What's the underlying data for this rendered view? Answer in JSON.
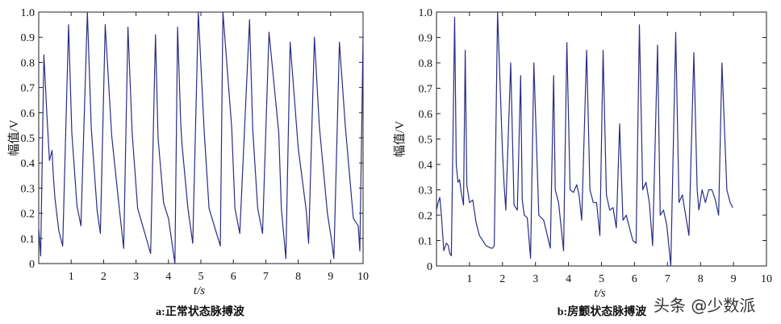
{
  "chart_data": [
    {
      "type": "line",
      "caption": "a:正常状态脉搏波",
      "xlabel": "t/s",
      "ylabel": "幅值/V",
      "xlim": [
        0,
        10
      ],
      "ylim": [
        0,
        1
      ],
      "xticks": [
        1,
        2,
        3,
        4,
        5,
        6,
        7,
        8,
        9,
        10
      ],
      "yticks": [
        0,
        0.1,
        0.2,
        0.3,
        0.4,
        0.5,
        0.6,
        0.7,
        0.8,
        0.9,
        1.0
      ],
      "ytick_labels": [
        "0",
        "0.1",
        "0.2",
        "0.3",
        "0.4",
        "0.5",
        "0.6",
        "0.7",
        "0.8",
        "0.9",
        "1.0"
      ],
      "grid": false,
      "color": "#2b2d83",
      "series": [
        {
          "x": [
            0.0,
            0.06,
            0.16,
            0.25,
            0.33,
            0.41,
            0.45,
            0.5,
            0.62,
            0.74,
            0.92,
            1.02,
            1.18,
            1.3,
            1.5,
            1.62,
            1.8,
            1.9,
            2.05,
            2.25,
            2.5,
            2.62,
            2.75,
            2.88,
            3.05,
            3.45,
            3.6,
            3.68,
            3.85,
            4.0,
            4.2,
            4.28,
            4.38,
            4.42,
            4.6,
            4.75,
            4.92,
            5.1,
            5.25,
            5.6,
            5.68,
            5.95,
            6.05,
            6.2,
            6.5,
            6.6,
            6.75,
            6.9,
            7.1,
            7.4,
            7.48,
            7.62,
            7.75,
            8.0,
            8.25,
            8.32,
            8.5,
            8.65,
            8.9,
            9.02,
            9.1,
            9.27,
            9.45,
            9.7,
            9.85,
            9.9,
            10.0
          ],
          "y": [
            0.14,
            0.03,
            0.83,
            0.6,
            0.41,
            0.45,
            0.35,
            0.26,
            0.13,
            0.07,
            0.95,
            0.52,
            0.23,
            0.15,
            1.0,
            0.54,
            0.21,
            0.12,
            0.95,
            0.51,
            0.2,
            0.06,
            0.94,
            0.52,
            0.22,
            0.04,
            0.91,
            0.5,
            0.24,
            0.18,
            0.0,
            0.94,
            0.55,
            0.47,
            0.22,
            0.08,
            1.0,
            0.53,
            0.22,
            0.07,
            1.0,
            0.54,
            0.22,
            0.12,
            0.97,
            0.53,
            0.22,
            0.12,
            0.92,
            0.52,
            0.22,
            0.02,
            0.88,
            0.46,
            0.21,
            0.08,
            0.9,
            0.55,
            0.2,
            0.1,
            0.02,
            0.88,
            0.55,
            0.18,
            0.15,
            0.05,
            0.9
          ]
        }
      ]
    },
    {
      "type": "line",
      "caption": "b:房颤状态脉搏波",
      "xlabel": "t/s",
      "ylabel": "幅值/V",
      "xlim": [
        0,
        10
      ],
      "ylim": [
        0,
        1
      ],
      "xticks": [
        1,
        2,
        3,
        4,
        5,
        6,
        7,
        8,
        9,
        10
      ],
      "yticks": [
        0,
        0.1,
        0.2,
        0.3,
        0.4,
        0.5,
        0.6,
        0.7,
        0.8,
        0.9,
        1.0
      ],
      "ytick_labels": [
        "0",
        "0.1",
        "0.2",
        "0.3",
        "0.4",
        "0.5",
        "0.6",
        "0.7",
        "0.8",
        "0.9",
        "1.0"
      ],
      "grid": false,
      "color": "#2b2d83",
      "series": [
        {
          "x": [
            0.0,
            0.05,
            0.1,
            0.15,
            0.22,
            0.3,
            0.36,
            0.4,
            0.45,
            0.55,
            0.6,
            0.65,
            0.7,
            0.75,
            0.82,
            0.87,
            0.92,
            1.0,
            1.1,
            1.2,
            1.3,
            1.5,
            1.65,
            1.7,
            1.75,
            1.85,
            2.0,
            2.05,
            2.1,
            2.25,
            2.35,
            2.45,
            2.55,
            2.6,
            2.66,
            2.75,
            2.85,
            2.95,
            3.1,
            3.25,
            3.45,
            3.55,
            3.6,
            3.7,
            3.85,
            3.95,
            4.05,
            4.15,
            4.25,
            4.32,
            4.4,
            4.55,
            4.65,
            4.75,
            4.85,
            4.95,
            5.05,
            5.15,
            5.25,
            5.35,
            5.45,
            5.55,
            5.65,
            5.75,
            5.85,
            5.95,
            6.05,
            6.15,
            6.25,
            6.35,
            6.45,
            6.55,
            6.7,
            6.78,
            6.88,
            6.98,
            7.1,
            7.25,
            7.35,
            7.45,
            7.55,
            7.65,
            7.8,
            7.9,
            7.95,
            8.05,
            8.15,
            8.25,
            8.35,
            8.45,
            8.55,
            8.65,
            8.8,
            8.9,
            8.98
          ],
          "y": [
            0.22,
            0.25,
            0.27,
            0.2,
            0.06,
            0.09,
            0.08,
            0.05,
            0.04,
            0.98,
            0.4,
            0.33,
            0.34,
            0.29,
            0.24,
            0.85,
            0.32,
            0.25,
            0.26,
            0.17,
            0.12,
            0.08,
            0.07,
            0.07,
            0.08,
            1.0,
            0.45,
            0.32,
            0.22,
            0.8,
            0.24,
            0.22,
            0.75,
            0.26,
            0.2,
            0.19,
            0.03,
            0.8,
            0.2,
            0.18,
            0.07,
            0.75,
            0.3,
            0.25,
            0.06,
            0.88,
            0.3,
            0.29,
            0.32,
            0.28,
            0.18,
            0.85,
            0.3,
            0.25,
            0.25,
            0.12,
            0.85,
            0.28,
            0.22,
            0.23,
            0.15,
            0.56,
            0.18,
            0.2,
            0.15,
            0.1,
            0.09,
            0.95,
            0.3,
            0.33,
            0.25,
            0.08,
            0.87,
            0.2,
            0.22,
            0.16,
            0.0,
            0.92,
            0.25,
            0.28,
            0.2,
            0.12,
            0.84,
            0.3,
            0.22,
            0.3,
            0.25,
            0.3,
            0.3,
            0.26,
            0.2,
            0.8,
            0.3,
            0.25,
            0.23
          ]
        }
      ]
    }
  ],
  "watermark": "头条 @少数派"
}
